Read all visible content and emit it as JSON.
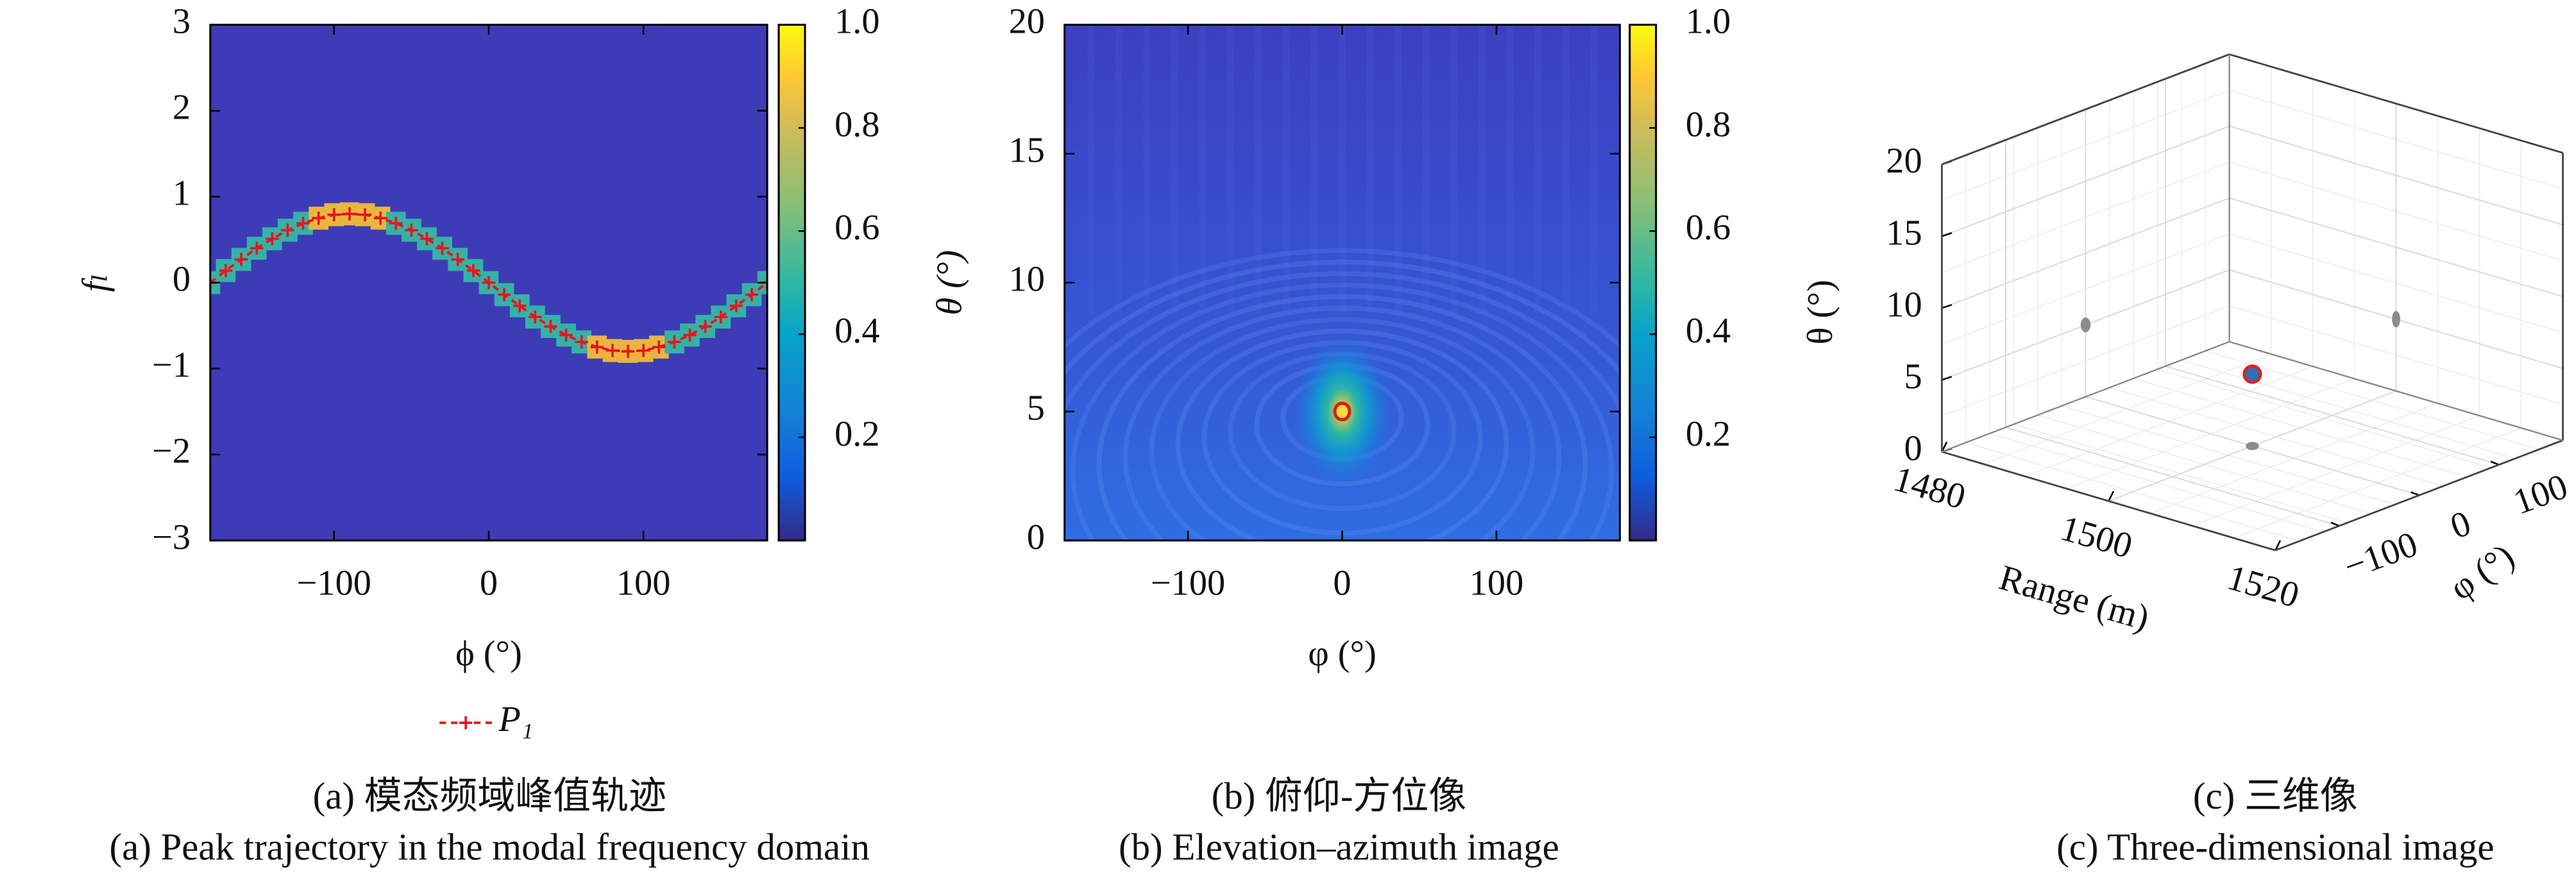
{
  "chart_data": [
    {
      "type": "heatmap",
      "caption_zh": "(a) 模态频域峰值轨迹",
      "caption_en": "(a) Peak trajectory in the modal frequency domain",
      "xlabel": "ϕ (°)",
      "ylabel": "fₗ",
      "xlim": [
        -180,
        180
      ],
      "ylim": [
        -3,
        3
      ],
      "xticks": [
        {
          "value": -100,
          "label": "−100"
        },
        0,
        100
      ],
      "yticks": [
        {
          "value": -3,
          "label": "−3"
        },
        {
          "value": -2,
          "label": "−2"
        },
        {
          "value": -1,
          "label": "−1"
        },
        0,
        1,
        2,
        3
      ],
      "colorbar": {
        "lim": [
          0,
          1
        ],
        "ticks": [
          0.2,
          0.4,
          0.6,
          0.8,
          {
            "value": 1,
            "label": "1.0"
          }
        ]
      },
      "legend": true,
      "series": [
        {
          "name": "P₁",
          "color": "#e8141c",
          "x": [
            -180,
            -170,
            -160,
            -150,
            -140,
            -130,
            -120,
            -110,
            -100,
            -90,
            -80,
            -70,
            -60,
            -50,
            -40,
            -30,
            -20,
            -10,
            0,
            10,
            20,
            30,
            40,
            50,
            60,
            70,
            80,
            90,
            100,
            110,
            120,
            130,
            140,
            150,
            160,
            170,
            180
          ],
          "values": [
            0,
            0.14,
            0.27,
            0.4,
            0.51,
            0.61,
            0.69,
            0.75,
            0.79,
            0.8,
            0.79,
            0.75,
            0.69,
            0.61,
            0.51,
            0.4,
            0.27,
            0.14,
            0,
            -0.14,
            -0.27,
            -0.4,
            -0.51,
            -0.61,
            -0.69,
            -0.75,
            -0.79,
            -0.8,
            -0.79,
            -0.75,
            -0.69,
            -0.61,
            -0.51,
            -0.4,
            -0.27,
            -0.14,
            0
          ]
        }
      ]
    },
    {
      "type": "heatmap",
      "caption_zh": "(b) 俯仰-方位像",
      "caption_en": "(b) Elevation–azimuth image",
      "xlabel": "φ (°)",
      "ylabel": "θ (°)",
      "xlim": [
        -180,
        180
      ],
      "ylim": [
        0,
        20
      ],
      "xticks": [
        {
          "value": -100,
          "label": "−100"
        },
        0,
        100
      ],
      "yticks": [
        0,
        5,
        10,
        15,
        20
      ],
      "colorbar": {
        "lim": [
          0,
          1
        ],
        "ticks": [
          0.2,
          0.4,
          0.6,
          0.8,
          {
            "value": 1,
            "label": "1.0"
          }
        ]
      },
      "peak": {
        "x": [
          0
        ],
        "y": [
          5
        ],
        "color": "#d81e1e"
      }
    },
    {
      "type": "scatter3d",
      "caption_zh": "(c) 三维像",
      "caption_en": "(c) Three-dimensional image",
      "xlabel": "Range (m)",
      "ylabel": "φ (°)",
      "zlabel": "θ (°)",
      "xlim": [
        1480,
        1520
      ],
      "ylim": [
        -180,
        180
      ],
      "zlim": [
        0,
        20
      ],
      "xticks": [
        1480,
        1500,
        1520
      ],
      "yticks": [
        {
          "value": -100,
          "label": "−100"
        },
        0,
        100
      ],
      "zticks": [
        0,
        5,
        10,
        15,
        20
      ],
      "x": [
        1500
      ],
      "y": [
        0
      ],
      "z": [
        5
      ],
      "color": "#2f6db5",
      "edge_color": "#e02020",
      "projection_color": "#8c8c8c"
    }
  ]
}
